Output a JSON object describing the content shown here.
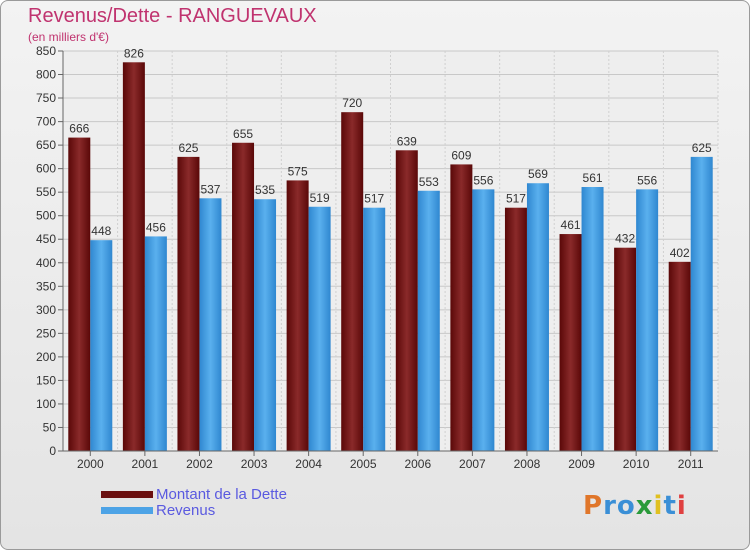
{
  "header": {
    "title": "Revenus/Dette - RANGUEVAUX",
    "subtitle": "(en milliers d'€)"
  },
  "chart_data": {
    "type": "bar",
    "title": "Revenus/Dette - RANGUEVAUX",
    "ylabel": "(en milliers d'€)",
    "ylim": [
      0,
      850
    ],
    "ytick_step": 50,
    "grid": true,
    "legend_position": "bottom-left",
    "categories": [
      "2000",
      "2001",
      "2002",
      "2003",
      "2004",
      "2005",
      "2006",
      "2007",
      "2008",
      "2009",
      "2010",
      "2011"
    ],
    "series": [
      {
        "name": "Montant de la Dette",
        "color": "#7a1a1a",
        "values": [
          666,
          826,
          625,
          655,
          575,
          720,
          639,
          609,
          517,
          461,
          432,
          402
        ]
      },
      {
        "name": "Revenus",
        "color": "#4da3e6",
        "values": [
          448,
          456,
          537,
          535,
          519,
          517,
          553,
          556,
          569,
          561,
          556,
          625
        ]
      }
    ]
  },
  "legend": {
    "items": [
      {
        "label": "Montant de la Dette",
        "color": "#7a1a1a"
      },
      {
        "label": "Revenus",
        "color": "#4da3e6"
      }
    ]
  },
  "logo": {
    "letters": [
      "P",
      "r",
      "o",
      "x",
      "i",
      "t",
      "i"
    ],
    "colors": [
      "#e0762a",
      "#3a8fd6",
      "#3a8fd6",
      "#2a9a3a",
      "#e0c020",
      "#3a8fd6",
      "#e04040"
    ]
  }
}
